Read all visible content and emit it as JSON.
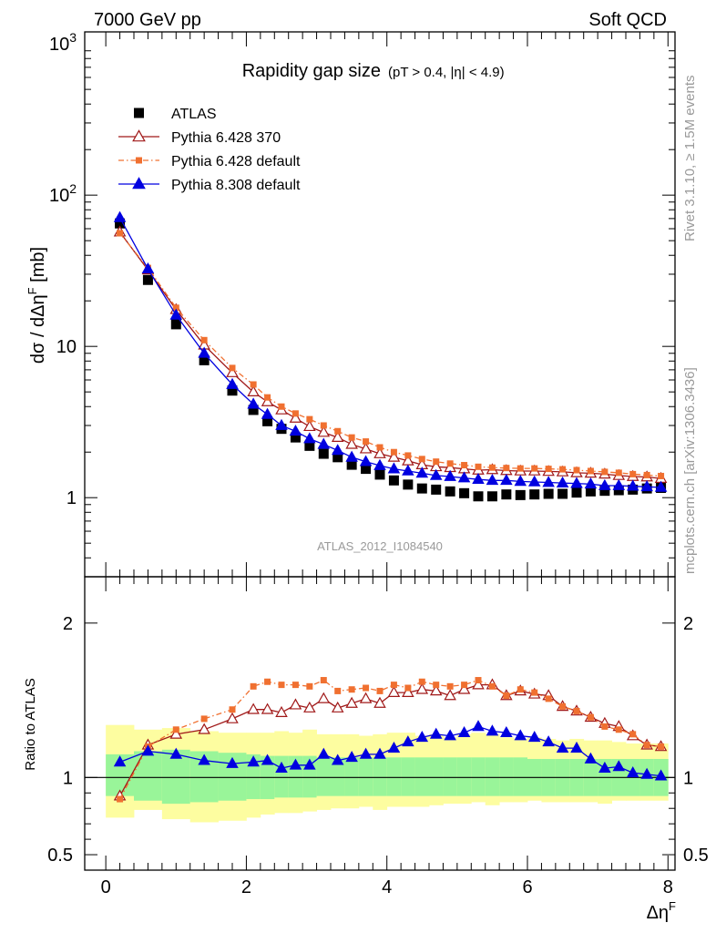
{
  "header": {
    "left": "7000 GeV pp",
    "right": "Soft QCD"
  },
  "side_text": {
    "upper": "Rivet 3.1.10, ≥ 1.5M events",
    "lower": "mcplots.cern.ch [arXiv:1306.3436]"
  },
  "chart_data": [
    {
      "type": "line",
      "panel": "main",
      "title": "Rapidity gap size",
      "subtitle": "(pT > 0.4, |η| < 4.9)",
      "ylabel": "dσ / dΔη^F [mb]",
      "watermark": "ATLAS_2012_I1084540",
      "yscale": "log",
      "xlim": [
        -0.3,
        8.1
      ],
      "ylim": [
        0.3,
        1200
      ],
      "yticks": [
        1,
        10,
        100,
        1000
      ],
      "ytick_labels": [
        "1",
        "10",
        "10^2",
        "10^3"
      ],
      "legend_position": "top-left",
      "series": [
        {
          "name": "ATLAS",
          "color": "#000000",
          "marker": "square",
          "x": [
            0.2,
            0.6,
            1.0,
            1.4,
            1.8,
            2.1,
            2.3,
            2.5,
            2.7,
            2.9,
            3.1,
            3.3,
            3.5,
            3.7,
            3.9,
            4.1,
            4.3,
            4.5,
            4.7,
            4.9,
            5.1,
            5.3,
            5.5,
            5.7,
            5.9,
            6.1,
            6.3,
            6.5,
            6.7,
            6.9,
            7.1,
            7.3,
            7.5,
            7.7,
            7.9
          ],
          "y": [
            65,
            27.5,
            14,
            8.1,
            5.1,
            3.8,
            3.2,
            2.85,
            2.5,
            2.2,
            1.95,
            1.85,
            1.65,
            1.55,
            1.42,
            1.3,
            1.22,
            1.15,
            1.13,
            1.1,
            1.07,
            1.02,
            1.02,
            1.05,
            1.04,
            1.05,
            1.06,
            1.06,
            1.08,
            1.1,
            1.11,
            1.12,
            1.13,
            1.15,
            1.16
          ]
        },
        {
          "name": "Pythia 6.428 370",
          "color": "#a01818",
          "marker": "open-triangle",
          "line": "solid",
          "x": [
            0.2,
            0.6,
            1.0,
            1.4,
            1.8,
            2.1,
            2.3,
            2.5,
            2.7,
            2.9,
            3.1,
            3.3,
            3.5,
            3.7,
            3.9,
            4.1,
            4.3,
            4.5,
            4.7,
            4.9,
            5.1,
            5.3,
            5.5,
            5.7,
            5.9,
            6.1,
            6.3,
            6.5,
            6.7,
            6.9,
            7.1,
            7.3,
            7.5,
            7.7,
            7.9
          ],
          "y": [
            57,
            32,
            17.5,
            10.2,
            6.7,
            5.0,
            4.3,
            3.8,
            3.35,
            2.95,
            2.7,
            2.5,
            2.25,
            2.1,
            1.95,
            1.85,
            1.75,
            1.65,
            1.6,
            1.58,
            1.55,
            1.52,
            1.53,
            1.51,
            1.5,
            1.5,
            1.49,
            1.48,
            1.46,
            1.45,
            1.43,
            1.4,
            1.38,
            1.37,
            1.34
          ]
        },
        {
          "name": "Pythia 6.428 default",
          "color": "#f07030",
          "marker": "filled-square",
          "line": "dash-dot",
          "x": [
            0.2,
            0.6,
            1.0,
            1.4,
            1.8,
            2.1,
            2.3,
            2.5,
            2.7,
            2.9,
            3.1,
            3.3,
            3.5,
            3.7,
            3.9,
            4.1,
            4.3,
            4.5,
            4.7,
            4.9,
            5.1,
            5.3,
            5.5,
            5.7,
            5.9,
            6.1,
            6.3,
            6.5,
            6.7,
            6.9,
            7.1,
            7.3,
            7.5,
            7.7,
            7.9
          ],
          "y": [
            56,
            33,
            18,
            11,
            7.2,
            5.6,
            4.6,
            4.0,
            3.6,
            3.3,
            3.0,
            2.75,
            2.5,
            2.35,
            2.15,
            2.0,
            1.9,
            1.8,
            1.73,
            1.68,
            1.64,
            1.6,
            1.58,
            1.57,
            1.56,
            1.56,
            1.55,
            1.54,
            1.52,
            1.5,
            1.48,
            1.46,
            1.43,
            1.41,
            1.39
          ]
        },
        {
          "name": "Pythia 8.308 default",
          "color": "#0000e0",
          "marker": "filled-triangle",
          "line": "solid",
          "x": [
            0.2,
            0.6,
            1.0,
            1.4,
            1.8,
            2.1,
            2.3,
            2.5,
            2.7,
            2.9,
            3.1,
            3.3,
            3.5,
            3.7,
            3.9,
            4.1,
            4.3,
            4.5,
            4.7,
            4.9,
            5.1,
            5.3,
            5.5,
            5.7,
            5.9,
            6.1,
            6.3,
            6.5,
            6.7,
            6.9,
            7.1,
            7.3,
            7.5,
            7.7,
            7.9
          ],
          "y": [
            71,
            32.5,
            16.1,
            9.0,
            5.6,
            4.15,
            3.55,
            3.0,
            2.75,
            2.45,
            2.25,
            2.05,
            1.85,
            1.73,
            1.63,
            1.55,
            1.5,
            1.45,
            1.4,
            1.38,
            1.35,
            1.32,
            1.3,
            1.3,
            1.28,
            1.27,
            1.26,
            1.25,
            1.24,
            1.23,
            1.2,
            1.2,
            1.19,
            1.18,
            1.17
          ]
        }
      ]
    },
    {
      "type": "line",
      "panel": "ratio",
      "ylabel": "Ratio to ATLAS",
      "xlabel": "Δη^F",
      "xlim": [
        -0.3,
        8.1
      ],
      "ylim": [
        0.4,
        2.3
      ],
      "xticks": [
        0,
        2,
        4,
        6,
        8
      ],
      "yticks": [
        0.5,
        1,
        2
      ],
      "ytick_labels": [
        "0.5",
        "1",
        "2"
      ],
      "bands": {
        "bin_edges": [
          0.0,
          0.4,
          0.8,
          1.2,
          1.6,
          2.0,
          2.2,
          2.4,
          2.6,
          2.8,
          3.0,
          3.2,
          3.4,
          3.6,
          3.8,
          4.0,
          4.2,
          4.4,
          4.6,
          4.8,
          5.0,
          5.2,
          5.4,
          5.6,
          5.8,
          6.0,
          6.2,
          6.4,
          6.6,
          6.8,
          7.0,
          7.2,
          7.4,
          7.6,
          7.8,
          8.0
        ],
        "inner_color": "#99f599",
        "outer_color": "#fdfda0",
        "inner_lo": [
          0.88,
          0.85,
          0.83,
          0.84,
          0.85,
          0.86,
          0.86,
          0.87,
          0.87,
          0.87,
          0.88,
          0.88,
          0.88,
          0.88,
          0.88,
          0.88,
          0.88,
          0.88,
          0.88,
          0.88,
          0.88,
          0.88,
          0.88,
          0.88,
          0.88,
          0.88,
          0.88,
          0.88,
          0.88,
          0.88,
          0.88,
          0.88,
          0.88,
          0.88,
          0.88
        ],
        "inner_hi": [
          1.15,
          1.17,
          1.18,
          1.17,
          1.16,
          1.15,
          1.14,
          1.14,
          1.14,
          1.14,
          1.13,
          1.13,
          1.13,
          1.13,
          1.13,
          1.13,
          1.13,
          1.13,
          1.13,
          1.13,
          1.13,
          1.13,
          1.13,
          1.13,
          1.13,
          1.12,
          1.12,
          1.12,
          1.12,
          1.12,
          1.12,
          1.12,
          1.12,
          1.12,
          1.12
        ],
        "outer_lo": [
          0.74,
          0.79,
          0.73,
          0.71,
          0.72,
          0.74,
          0.76,
          0.77,
          0.77,
          0.78,
          0.79,
          0.8,
          0.8,
          0.81,
          0.79,
          0.81,
          0.81,
          0.81,
          0.82,
          0.83,
          0.83,
          0.84,
          0.82,
          0.84,
          0.84,
          0.85,
          0.84,
          0.84,
          0.84,
          0.84,
          0.83,
          0.85,
          0.85,
          0.85,
          0.85
        ],
        "outer_hi": [
          1.34,
          1.31,
          1.32,
          1.3,
          1.29,
          1.29,
          1.29,
          1.3,
          1.29,
          1.31,
          1.28,
          1.28,
          1.28,
          1.27,
          1.28,
          1.29,
          1.29,
          1.27,
          1.28,
          1.26,
          1.28,
          1.29,
          1.28,
          1.26,
          1.25,
          1.26,
          1.25,
          1.24,
          1.25,
          1.24,
          1.24,
          1.23,
          1.22,
          1.22,
          1.22
        ]
      },
      "series": [
        {
          "name": "Pythia 6.428 370",
          "color": "#a01818",
          "marker": "open-triangle",
          "line": "solid",
          "x": [
            0.2,
            0.6,
            1.0,
            1.4,
            1.8,
            2.1,
            2.3,
            2.5,
            2.7,
            2.9,
            3.1,
            3.3,
            3.5,
            3.7,
            3.9,
            4.1,
            4.3,
            4.5,
            4.7,
            4.9,
            5.1,
            5.3,
            5.5,
            5.7,
            5.9,
            6.1,
            6.3,
            6.5,
            6.7,
            6.9,
            7.1,
            7.3,
            7.5,
            7.7,
            7.9
          ],
          "y": [
            0.88,
            1.21,
            1.28,
            1.31,
            1.38,
            1.44,
            1.44,
            1.42,
            1.47,
            1.45,
            1.51,
            1.45,
            1.48,
            1.51,
            1.48,
            1.55,
            1.55,
            1.57,
            1.56,
            1.53,
            1.57,
            1.6,
            1.6,
            1.53,
            1.56,
            1.54,
            1.53,
            1.46,
            1.43,
            1.39,
            1.35,
            1.33,
            1.27,
            1.21,
            1.2
          ]
        },
        {
          "name": "Pythia 6.428 default",
          "color": "#f07030",
          "marker": "filled-square",
          "line": "dash-dot",
          "x": [
            0.2,
            0.6,
            1.0,
            1.4,
            1.8,
            2.1,
            2.3,
            2.5,
            2.7,
            2.9,
            3.1,
            3.3,
            3.5,
            3.7,
            3.9,
            4.1,
            4.3,
            4.5,
            4.7,
            4.9,
            5.1,
            5.3,
            5.5,
            5.7,
            5.9,
            6.1,
            6.3,
            6.5,
            6.7,
            6.9,
            7.1,
            7.3,
            7.5,
            7.7,
            7.9
          ],
          "y": [
            0.86,
            1.2,
            1.31,
            1.38,
            1.44,
            1.59,
            1.62,
            1.6,
            1.6,
            1.59,
            1.63,
            1.56,
            1.57,
            1.58,
            1.56,
            1.6,
            1.58,
            1.62,
            1.6,
            1.59,
            1.6,
            1.63,
            1.59,
            1.53,
            1.57,
            1.55,
            1.51,
            1.46,
            1.43,
            1.39,
            1.33,
            1.31,
            1.28,
            1.21,
            1.2
          ]
        },
        {
          "name": "Pythia 8.308 default",
          "color": "#0000e0",
          "marker": "filled-triangle",
          "line": "solid",
          "x": [
            0.2,
            0.6,
            1.0,
            1.4,
            1.8,
            2.1,
            2.3,
            2.5,
            2.7,
            2.9,
            3.1,
            3.3,
            3.5,
            3.7,
            3.9,
            4.1,
            4.3,
            4.5,
            4.7,
            4.9,
            5.1,
            5.3,
            5.5,
            5.7,
            5.9,
            6.1,
            6.3,
            6.5,
            6.7,
            6.9,
            7.1,
            7.3,
            7.5,
            7.7,
            7.9
          ],
          "y": [
            1.1,
            1.17,
            1.15,
            1.11,
            1.09,
            1.1,
            1.11,
            1.06,
            1.08,
            1.08,
            1.15,
            1.11,
            1.13,
            1.15,
            1.15,
            1.19,
            1.23,
            1.26,
            1.28,
            1.27,
            1.29,
            1.33,
            1.3,
            1.29,
            1.27,
            1.26,
            1.23,
            1.19,
            1.19,
            1.12,
            1.06,
            1.07,
            1.03,
            1.02,
            1.01
          ]
        }
      ]
    }
  ]
}
